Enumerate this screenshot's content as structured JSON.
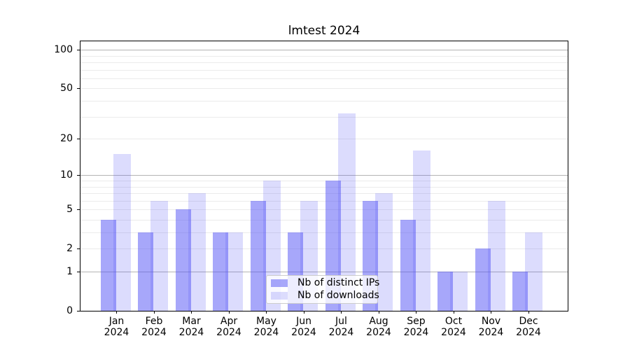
{
  "chart_data": {
    "type": "bar",
    "title": "lmtest 2024",
    "x": [
      "Jan",
      "Feb",
      "Mar",
      "Apr",
      "May",
      "Jun",
      "Jul",
      "Aug",
      "Sep",
      "Oct",
      "Nov",
      "Dec"
    ],
    "x_year": "2024",
    "series": [
      {
        "name": "Nb of distinct IPs",
        "values": [
          4,
          3,
          5,
          3,
          6,
          3,
          9,
          6,
          4,
          1,
          2,
          1
        ],
        "color": "rgba(80,80,245,0.5)"
      },
      {
        "name": "Nb of downloads",
        "values": [
          15,
          6,
          7,
          3,
          9,
          6,
          32,
          7,
          16,
          1,
          6,
          3
        ],
        "color": "rgba(80,80,245,0.2)"
      }
    ],
    "y_axis": {
      "scale": "log1p",
      "tick_values": [
        0,
        1,
        2,
        5,
        10,
        20,
        50,
        100
      ],
      "major_gridlines": [
        1,
        10,
        100
      ],
      "minor_gridlines": [
        2,
        3,
        4,
        5,
        6,
        7,
        8,
        9,
        20,
        30,
        40,
        50,
        60,
        70,
        80,
        90
      ],
      "ylim": [
        0,
        116
      ]
    },
    "legend": {
      "position": "lower center",
      "labels": [
        "Nb of distinct IPs",
        "Nb of downloads"
      ]
    },
    "grid": true,
    "colors": {
      "bar_base": "#5050f5",
      "major_grid": "#b4b4b4",
      "minor_grid": "#ebebeb",
      "spine": "#000000",
      "background": "#ffffff"
    }
  }
}
